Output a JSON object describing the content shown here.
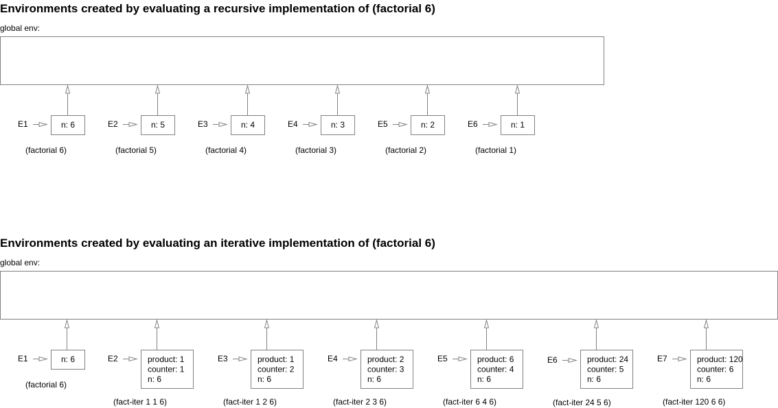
{
  "recursive": {
    "title": "Environments created by evaluating a recursive implementation of (factorial 6)",
    "global_label": "global env:",
    "frames": [
      {
        "id": "E1",
        "lines": [
          "n: 6"
        ],
        "call": "(factorial 6)"
      },
      {
        "id": "E2",
        "lines": [
          "n: 5"
        ],
        "call": "(factorial 5)"
      },
      {
        "id": "E3",
        "lines": [
          "n: 4"
        ],
        "call": "(factorial 4)"
      },
      {
        "id": "E4",
        "lines": [
          "n: 3"
        ],
        "call": "(factorial 3)"
      },
      {
        "id": "E5",
        "lines": [
          "n: 2"
        ],
        "call": "(factorial 2)"
      },
      {
        "id": "E6",
        "lines": [
          "n: 1"
        ],
        "call": "(factorial 1)"
      }
    ]
  },
  "iterative": {
    "title": "Environments created by evaluating an iterative implementation of (factorial 6)",
    "global_label": "global env:",
    "frames": [
      {
        "id": "E1",
        "lines": [
          "n: 6"
        ],
        "call": "(factorial 6)"
      },
      {
        "id": "E2",
        "lines": [
          "product: 1",
          "counter: 1",
          "n: 6"
        ],
        "call": "(fact-iter 1 1 6)"
      },
      {
        "id": "E3",
        "lines": [
          "product: 1",
          "counter: 2",
          "n: 6"
        ],
        "call": "(fact-iter 1 2 6)"
      },
      {
        "id": "E4",
        "lines": [
          "product: 2",
          "counter: 3",
          "n: 6"
        ],
        "call": "(fact-iter 2 3 6)"
      },
      {
        "id": "E5",
        "lines": [
          "product: 6",
          "counter: 4",
          "n: 6"
        ],
        "call": "(fact-iter 6 4 6)"
      },
      {
        "id": "E6",
        "lines": [
          "product: 24",
          "counter: 5",
          "n: 6"
        ],
        "call": "(fact-iter 24 5 6)"
      },
      {
        "id": "E7",
        "lines": [
          "product: 120",
          "counter: 6",
          "n: 6"
        ],
        "call": "(fact-iter 120 6 6)"
      }
    ]
  }
}
